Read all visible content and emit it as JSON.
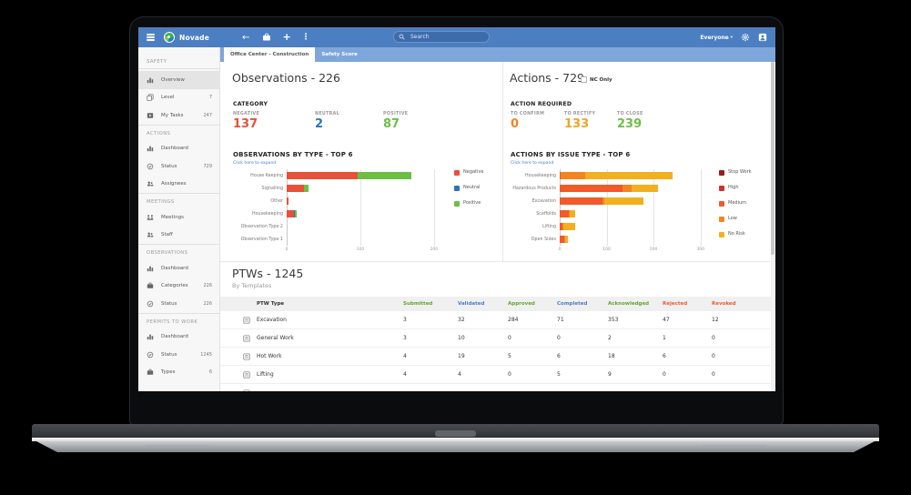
{
  "topbar": {
    "brand": "Novade",
    "search_placeholder": "Search",
    "scope_label": "Everyone",
    "color": "#4c7fc1"
  },
  "tabs": [
    {
      "label": "Office Center - Construction",
      "active": true
    },
    {
      "label": "Safety Score",
      "active": false
    }
  ],
  "sidebar": {
    "sections": [
      {
        "header": "SAFETY",
        "items": [
          {
            "icon": "chart",
            "label": "Overview",
            "selected": true
          },
          {
            "icon": "copy",
            "label": "Level",
            "count": "7"
          },
          {
            "icon": "play",
            "label": "My Tasks",
            "count": "247"
          }
        ]
      },
      {
        "header": "ACTIONS",
        "items": [
          {
            "icon": "chart",
            "label": "Dashboard"
          },
          {
            "icon": "clock",
            "label": "Status",
            "count": "729"
          },
          {
            "icon": "people",
            "label": "Assignees"
          }
        ]
      },
      {
        "header": "MEETINGS",
        "items": [
          {
            "icon": "meeting",
            "label": "Meetings"
          },
          {
            "icon": "people",
            "label": "Staff"
          }
        ]
      },
      {
        "header": "OBSERVATIONS",
        "items": [
          {
            "icon": "chart",
            "label": "Dashboard"
          },
          {
            "icon": "briefcase",
            "label": "Categories",
            "count": "226"
          },
          {
            "icon": "clock",
            "label": "Status",
            "count": "226"
          }
        ]
      },
      {
        "header": "PERMITS TO WORK",
        "items": [
          {
            "icon": "chart",
            "label": "Dashboard"
          },
          {
            "icon": "clock",
            "label": "Status",
            "count": "1245"
          },
          {
            "icon": "briefcase",
            "label": "Types",
            "count": "6"
          }
        ]
      }
    ]
  },
  "observations": {
    "title": "Observations - 226",
    "category_label": "CATEGORY",
    "stats": [
      {
        "label": "NEGATIVE",
        "value": "137",
        "color": "#e8503a"
      },
      {
        "label": "NEUTRAL",
        "value": "2",
        "color": "#2e73ba"
      },
      {
        "label": "POSITIVE",
        "value": "87",
        "color": "#6cbf44"
      }
    ]
  },
  "actions": {
    "title": "Actions - 729",
    "nc_only_label": "NC Only",
    "required_label": "ACTION REQUIRED",
    "stats": [
      {
        "label": "TO CONFIRM",
        "value": "0",
        "color": "#f0861f"
      },
      {
        "label": "TO RECTIFY",
        "value": "133",
        "color": "#f0a51f"
      },
      {
        "label": "TO CLOSE",
        "value": "239",
        "color": "#6cbf44"
      }
    ]
  },
  "chart_data": [
    {
      "type": "bar",
      "orientation": "horizontal",
      "title": "OBSERVATIONS BY TYPE - TOP 6",
      "expand_link": "Click here to expand",
      "categories": [
        "House Keeping",
        "Signalling",
        "Other",
        "Housekeeping",
        "Observation Type 2",
        "Observation Type 1"
      ],
      "series": [
        {
          "name": "Negative",
          "color": "#e8503a",
          "values": [
            96,
            23,
            2,
            10,
            0,
            0
          ]
        },
        {
          "name": "Neutral",
          "color": "#2e73ba",
          "values": [
            0,
            0,
            0,
            1,
            0,
            0
          ]
        },
        {
          "name": "Positive",
          "color": "#6cbf44",
          "values": [
            73,
            7,
            0,
            2,
            0,
            0
          ]
        }
      ],
      "xticks": [
        0,
        100,
        200
      ],
      "xmax": 215,
      "legend_position": "right",
      "grid": true
    },
    {
      "type": "bar",
      "orientation": "horizontal",
      "title": "ACTIONS BY ISSUE TYPE - TOP 6",
      "expand_link": "Click here to expand",
      "categories": [
        "Housekeeping",
        "Hazardous Products",
        "Excavation",
        "Scaffolds",
        "Lifting",
        "Open Sides"
      ],
      "series": [
        {
          "name": "Stop Work",
          "color": "#9e1b1b",
          "values": [
            0,
            0,
            0,
            0,
            0,
            0
          ]
        },
        {
          "name": "High",
          "color": "#d2302c",
          "values": [
            0,
            0,
            0,
            0,
            0,
            0
          ]
        },
        {
          "name": "Medium",
          "color": "#f15a29",
          "values": [
            2,
            133,
            92,
            20,
            6,
            10
          ]
        },
        {
          "name": "Low",
          "color": "#f5841f",
          "values": [
            53,
            20,
            4,
            2,
            1,
            1
          ]
        },
        {
          "name": "No Risk",
          "color": "#f2b01f",
          "values": [
            186,
            57,
            82,
            11,
            26,
            6
          ]
        }
      ],
      "xticks": [
        0,
        100,
        200,
        300
      ],
      "xmax": 355,
      "legend_position": "right",
      "grid": true
    },
    {
      "type": "table",
      "title": "PTWs - 1245",
      "subtitle": "By Templates",
      "columns": [
        "PTW Type",
        "Submitted",
        "Validated",
        "Approved",
        "Completed",
        "Acknowledged",
        "Rejected",
        "Revoked"
      ],
      "rows": [
        {
          "name": "Excavation",
          "values": [
            3,
            32,
            284,
            71,
            353,
            47,
            12
          ]
        },
        {
          "name": "General Work",
          "values": [
            3,
            10,
            0,
            0,
            2,
            1,
            0
          ]
        },
        {
          "name": "Hot Work",
          "values": [
            4,
            19,
            5,
            6,
            18,
            6,
            0
          ]
        },
        {
          "name": "Lifting",
          "values": [
            4,
            4,
            0,
            5,
            9,
            0,
            0
          ]
        }
      ]
    }
  ],
  "ptw": {
    "title": "PTWs - 1245",
    "subtitle": "By Templates",
    "columns": [
      {
        "label": "PTW Type",
        "color": "#333333"
      },
      {
        "label": "Submitted",
        "color": "#5fa52f"
      },
      {
        "label": "Validated",
        "color": "#4a7ec1"
      },
      {
        "label": "Approved",
        "color": "#5fa52f"
      },
      {
        "label": "Completed",
        "color": "#4a7ec1"
      },
      {
        "label": "Acknowledged",
        "color": "#5fa52f"
      },
      {
        "label": "Rejected",
        "color": "#ee5a2b"
      },
      {
        "label": "Revoked",
        "color": "#ee5a2b"
      }
    ],
    "rows": [
      {
        "name": "Excavation",
        "values": [
          "3",
          "32",
          "284",
          "71",
          "353",
          "47",
          "12"
        ]
      },
      {
        "name": "General Work",
        "values": [
          "3",
          "10",
          "0",
          "0",
          "2",
          "1",
          "0"
        ]
      },
      {
        "name": "Hot Work",
        "values": [
          "4",
          "19",
          "5",
          "6",
          "18",
          "6",
          "0"
        ]
      },
      {
        "name": "Lifting",
        "values": [
          "4",
          "4",
          "0",
          "5",
          "9",
          "0",
          "0"
        ]
      },
      {
        "name": "",
        "values": [],
        "partial": true
      }
    ]
  }
}
